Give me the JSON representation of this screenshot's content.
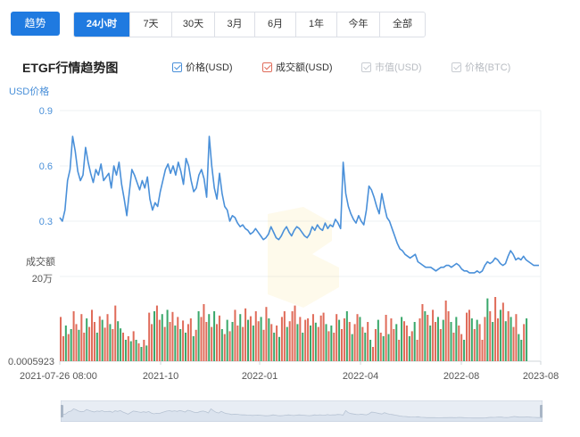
{
  "toolbar": {
    "trend_label": "趋势",
    "ranges": [
      "24小时",
      "7天",
      "30天",
      "3月",
      "6月",
      "1年",
      "今年",
      "全部"
    ],
    "active_range": "24小时"
  },
  "chart_title": "ETGF行情趋势图",
  "legend": [
    {
      "label": "价格(USD)",
      "color": "#4a90d9",
      "checked": true
    },
    {
      "label": "成交额(USD)",
      "color": "#e06c5a",
      "checked": true
    },
    {
      "label": "市值(USD)",
      "color": "#c8ccd2",
      "checked": false
    },
    {
      "label": "价格(BTC)",
      "color": "#c8ccd2",
      "checked": false
    }
  ],
  "colors": {
    "accent": "#1f7ae0",
    "price_line": "#4a90d9",
    "volume_up": "#e06c5a",
    "volume_down": "#3aa86b",
    "grid": "#eef0f3",
    "axis_text": "#4a90d9",
    "navigator_fill": "#dbe3ee"
  },
  "chart_data": {
    "type": "line",
    "yaxis_price": {
      "label": "USD价格",
      "ticks": [
        "0.9",
        "0.6",
        "0.3"
      ],
      "range": [
        0.0,
        0.9
      ]
    },
    "yaxis_volume": {
      "label": "成交额",
      "ticks": [
        "20万",
        "0.0005923"
      ]
    },
    "x_ticks": [
      "2021-07-26 08:00",
      "2021-10",
      "2022-01",
      "2022-04",
      "2022-08",
      "2023-08"
    ],
    "series": [
      {
        "name": "价格(USD)",
        "type": "line",
        "values": [
          0.32,
          0.3,
          0.36,
          0.52,
          0.58,
          0.76,
          0.68,
          0.57,
          0.52,
          0.55,
          0.7,
          0.62,
          0.56,
          0.51,
          0.58,
          0.55,
          0.61,
          0.52,
          0.54,
          0.56,
          0.48,
          0.6,
          0.55,
          0.62,
          0.5,
          0.42,
          0.33,
          0.46,
          0.58,
          0.55,
          0.51,
          0.47,
          0.52,
          0.48,
          0.54,
          0.42,
          0.36,
          0.4,
          0.38,
          0.46,
          0.52,
          0.58,
          0.61,
          0.56,
          0.6,
          0.55,
          0.62,
          0.57,
          0.5,
          0.64,
          0.6,
          0.52,
          0.46,
          0.48,
          0.55,
          0.58,
          0.53,
          0.43,
          0.76,
          0.6,
          0.48,
          0.42,
          0.56,
          0.45,
          0.38,
          0.36,
          0.3,
          0.33,
          0.32,
          0.29,
          0.27,
          0.28,
          0.26,
          0.25,
          0.23,
          0.24,
          0.26,
          0.24,
          0.22,
          0.2,
          0.21,
          0.23,
          0.27,
          0.24,
          0.21,
          0.2,
          0.22,
          0.25,
          0.27,
          0.24,
          0.22,
          0.25,
          0.27,
          0.26,
          0.24,
          0.22,
          0.21,
          0.23,
          0.27,
          0.25,
          0.28,
          0.26,
          0.25,
          0.29,
          0.26,
          0.28,
          0.27,
          0.31,
          0.29,
          0.26,
          0.62,
          0.45,
          0.38,
          0.34,
          0.31,
          0.29,
          0.33,
          0.3,
          0.28,
          0.36,
          0.49,
          0.47,
          0.43,
          0.38,
          0.34,
          0.45,
          0.38,
          0.32,
          0.3,
          0.26,
          0.22,
          0.18,
          0.15,
          0.14,
          0.12,
          0.11,
          0.1,
          0.11,
          0.12,
          0.08,
          0.07,
          0.06,
          0.05,
          0.05,
          0.05,
          0.04,
          0.03,
          0.04,
          0.05,
          0.05,
          0.06,
          0.06,
          0.05,
          0.06,
          0.07,
          0.06,
          0.04,
          0.03,
          0.03,
          0.02,
          0.02,
          0.02,
          0.03,
          0.02,
          0.03,
          0.06,
          0.08,
          0.07,
          0.08,
          0.1,
          0.09,
          0.07,
          0.06,
          0.07,
          0.11,
          0.14,
          0.12,
          0.09,
          0.1,
          0.09,
          0.11,
          0.09,
          0.08,
          0.07,
          0.06,
          0.06,
          0.06
        ]
      },
      {
        "name": "成交额(USD)",
        "type": "bar",
        "values_relative": [
          0.62,
          0.35,
          0.5,
          0.38,
          0.45,
          0.7,
          0.52,
          0.44,
          0.66,
          0.4,
          0.6,
          0.48,
          0.72,
          0.55,
          0.4,
          0.63,
          0.58,
          0.47,
          0.66,
          0.52,
          0.45,
          0.78,
          0.56,
          0.46,
          0.4,
          0.3,
          0.35,
          0.28,
          0.42,
          0.3,
          0.25,
          0.2,
          0.3,
          0.22,
          0.68,
          0.52,
          0.7,
          0.78,
          0.58,
          0.66,
          0.48,
          0.72,
          0.55,
          0.69,
          0.5,
          0.62,
          0.45,
          0.57,
          0.4,
          0.52,
          0.6,
          0.35,
          0.44,
          0.7,
          0.62,
          0.8,
          0.55,
          0.66,
          0.48,
          0.7,
          0.52,
          0.64,
          0.45,
          0.38,
          0.58,
          0.42,
          0.55,
          0.72,
          0.5,
          0.66,
          0.48,
          0.74,
          0.58,
          0.63,
          0.5,
          0.7,
          0.56,
          0.62,
          0.44,
          0.76,
          0.6,
          0.52,
          0.4,
          0.5,
          0.34,
          0.62,
          0.7,
          0.48,
          0.56,
          0.7,
          0.78,
          0.52,
          0.62,
          0.4,
          0.58,
          0.6,
          0.5,
          0.66,
          0.54,
          0.48,
          0.64,
          0.68,
          0.52,
          0.42,
          0.5,
          0.4,
          0.66,
          0.58,
          0.45,
          0.6,
          0.7,
          0.55,
          0.38,
          0.52,
          0.66,
          0.62,
          0.48,
          0.4,
          0.55,
          0.3,
          0.2,
          0.45,
          0.58,
          0.4,
          0.35,
          0.65,
          0.38,
          0.6,
          0.45,
          0.52,
          0.3,
          0.62,
          0.56,
          0.5,
          0.35,
          0.42,
          0.55,
          0.3,
          0.6,
          0.8,
          0.7,
          0.65,
          0.5,
          0.72,
          0.55,
          0.62,
          0.45,
          0.58,
          0.85,
          0.7,
          0.55,
          0.4,
          0.62,
          0.5,
          0.38,
          0.3,
          0.68,
          0.72,
          0.6,
          0.45,
          0.58,
          0.52,
          0.3,
          0.62,
          0.88,
          0.7,
          0.55,
          0.9,
          0.6,
          0.72,
          0.82,
          0.56,
          0.7,
          0.62,
          0.48,
          0.66,
          0.38,
          0.3,
          0.52,
          0.6
        ],
        "color_pattern_up": [
          1,
          1,
          0,
          1,
          0,
          1,
          1,
          0,
          1,
          1,
          0,
          1,
          1,
          1,
          0,
          1,
          0,
          1,
          1,
          0,
          1,
          1,
          0,
          0,
          1,
          0,
          1,
          0,
          1,
          0,
          1,
          0,
          1,
          0,
          1,
          1,
          0,
          1,
          1,
          0,
          1,
          0,
          1,
          1,
          0,
          1,
          0,
          1,
          0,
          1,
          1,
          0,
          1,
          0,
          1,
          1,
          1,
          0,
          1,
          0,
          1,
          1,
          0,
          1,
          0,
          1,
          0,
          1,
          1,
          0,
          1,
          1,
          0,
          1,
          0,
          1,
          1,
          0,
          1,
          1,
          0,
          1,
          0,
          1,
          0,
          1,
          1,
          0,
          1,
          1,
          1,
          0,
          1,
          0,
          1,
          1,
          0,
          1,
          0,
          1,
          1,
          1,
          0,
          1,
          0,
          1,
          1,
          0,
          1,
          1,
          0,
          1,
          0,
          1,
          1,
          0,
          1,
          0,
          1,
          0,
          1,
          1,
          0,
          1,
          0,
          1,
          0,
          1,
          1,
          0,
          1,
          0,
          1,
          1,
          0,
          1,
          0,
          1,
          1,
          1,
          0,
          1,
          0,
          1,
          1,
          0,
          1,
          0,
          1,
          1,
          0,
          1,
          0,
          1,
          1,
          0,
          1,
          1,
          0,
          1,
          0,
          1,
          1,
          1,
          0,
          1,
          0,
          1,
          1,
          0,
          1,
          0,
          1,
          0,
          1,
          1,
          0,
          0,
          1,
          0,
          1,
          0
        ]
      }
    ]
  }
}
